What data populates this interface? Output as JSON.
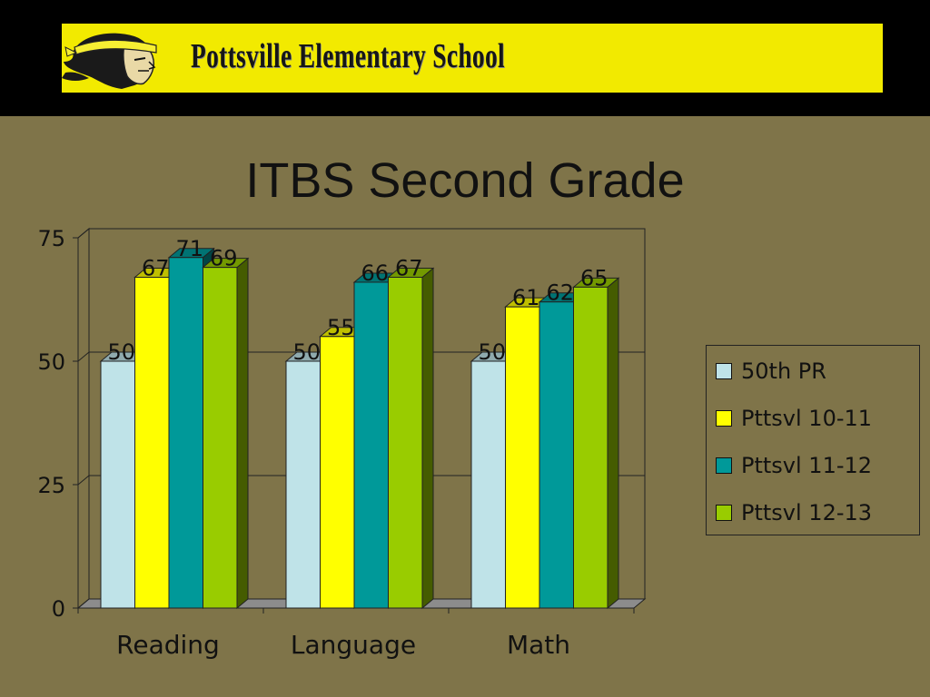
{
  "banner": {
    "school_name": "Pottsville Elementary School",
    "logo_icon": "indian-mascot-icon",
    "background_color": "#f2ea00"
  },
  "chart_data": {
    "type": "bar",
    "title": "ITBS Second Grade",
    "categories": [
      "Reading",
      "Language",
      "Math"
    ],
    "series": [
      {
        "name": "50th PR",
        "values": [
          50,
          50,
          50
        ],
        "color": "#bfe3e8"
      },
      {
        "name": "Pttsvl 10-11",
        "values": [
          67,
          55,
          61
        ],
        "color": "#ffff00"
      },
      {
        "name": "Pttsvl 11-12",
        "values": [
          71,
          66,
          62
        ],
        "color": "#009999"
      },
      {
        "name": "Pttsvl 12-13",
        "values": [
          69,
          67,
          65
        ],
        "color": "#99cc00"
      }
    ],
    "ylim": [
      0,
      75
    ],
    "yticks": [
      0,
      25,
      50,
      75
    ],
    "grid": true,
    "legend_position": "right",
    "xlabel": "",
    "ylabel": ""
  }
}
